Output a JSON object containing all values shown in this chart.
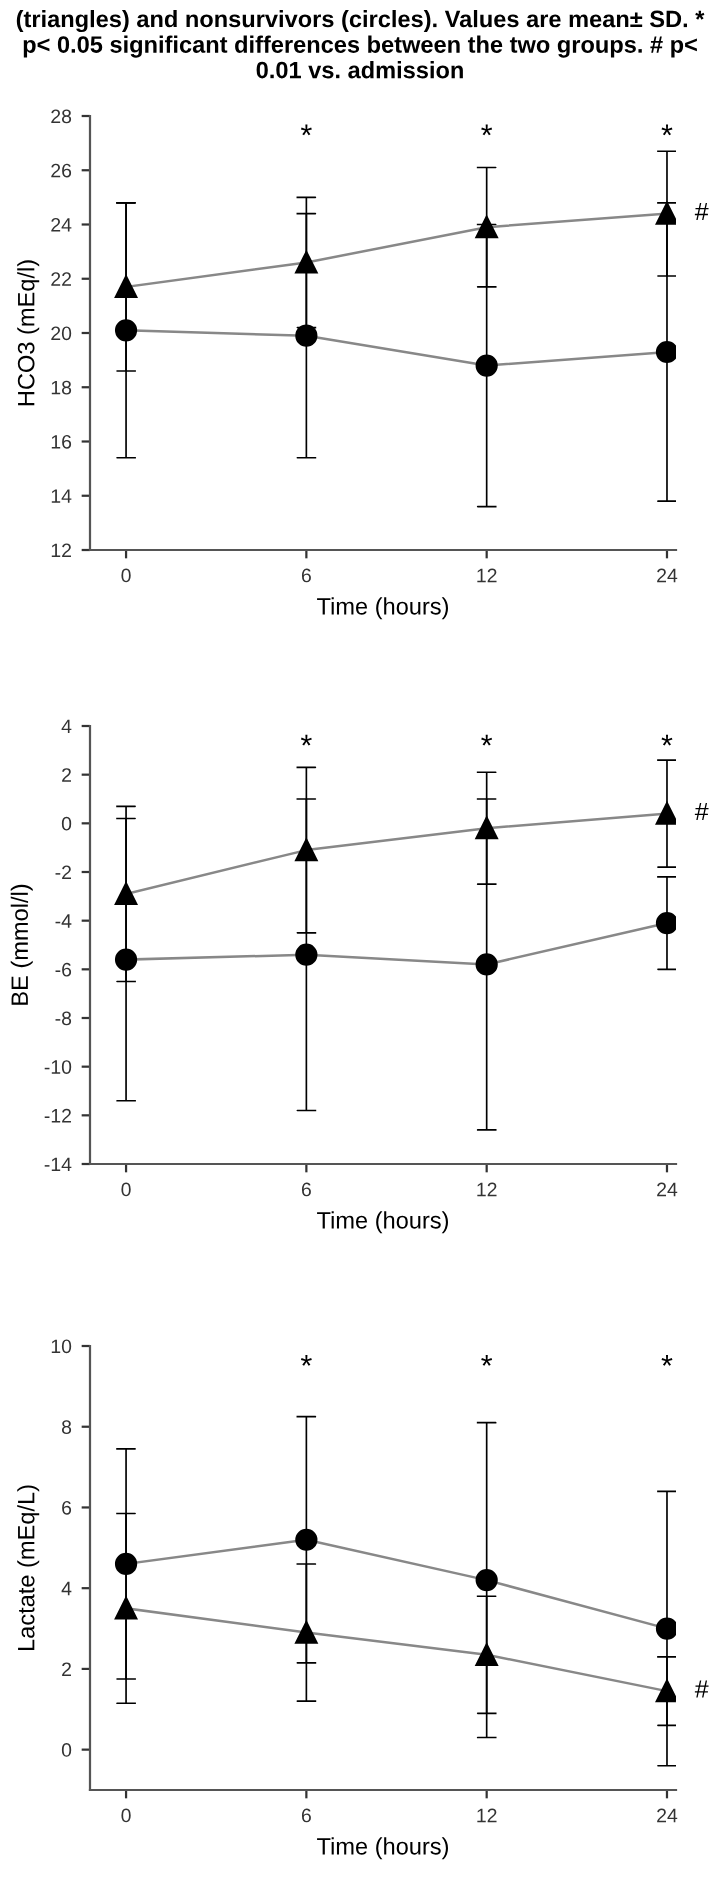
{
  "chart_data": [
    {
      "type": "line",
      "title": "(triangles) and nonsurvivors (circles). Values are mean± SD. * p< 0.05 significant differences between the two groups. # p< 0.01 vs. admission",
      "xlabel": "Time (hours)",
      "ylabel": "HCO3 (mEq/l)",
      "categories": [
        "0",
        "6",
        "12",
        "24"
      ],
      "ylim": [
        12,
        28
      ],
      "yticks": [
        12,
        14,
        16,
        18,
        20,
        22,
        24,
        26,
        28
      ],
      "grid": false,
      "legend": false,
      "series": [
        {
          "color": "#000000",
          "marker": "triangle",
          "values": [
            21.7,
            22.6,
            23.9,
            24.4
          ],
          "errors": [
            3.1,
            2.4,
            2.2,
            2.3
          ]
        },
        {
          "color": "#000000",
          "marker": "circle",
          "values": [
            20.1,
            19.9,
            18.8,
            19.3
          ],
          "errors": [
            4.7,
            4.5,
            5.2,
            5.5
          ]
        }
      ],
      "annotations": [
        "*",
        "*",
        "*",
        "#"
      ]
    },
    {
      "type": "line",
      "xlabel": "Time (hours)",
      "ylabel": "BE (mmol/l)",
      "categories": [
        "0",
        "6",
        "12",
        "24"
      ],
      "ylim": [
        -14,
        4
      ],
      "yticks": [
        -14,
        -12,
        -10,
        -8,
        -6,
        -4,
        -2,
        0,
        2,
        4
      ],
      "grid": false,
      "legend": false,
      "series": [
        {
          "color": "#000000",
          "marker": "triangle",
          "values": [
            -2.9,
            -1.1,
            -0.2,
            0.4
          ],
          "errors": [
            3.6,
            3.4,
            2.3,
            2.2
          ]
        },
        {
          "color": "#000000",
          "marker": "circle",
          "values": [
            -5.6,
            -5.4,
            -5.8,
            -4.1
          ],
          "errors": [
            5.8,
            6.4,
            6.8,
            1.9
          ]
        }
      ],
      "annotations": [
        "*",
        "*",
        "*",
        "#"
      ]
    },
    {
      "type": "line",
      "xlabel": "Time (hours)",
      "ylabel": "Lactate (mEq/L)",
      "categories": [
        "0",
        "6",
        "12",
        "24"
      ],
      "ylim": [
        -1,
        10
      ],
      "yticks": [
        0,
        2,
        4,
        6,
        8,
        10
      ],
      "grid": false,
      "legend": false,
      "series": [
        {
          "color": "#000000",
          "marker": "circle",
          "values": [
            4.6,
            5.2,
            4.2,
            3.0
          ],
          "errors": [
            2.85,
            3.05,
            3.9,
            3.4
          ]
        },
        {
          "color": "#000000",
          "marker": "triangle",
          "values": [
            3.5,
            2.9,
            2.35,
            1.45
          ],
          "errors": [
            2.35,
            1.7,
            1.45,
            0.85
          ]
        }
      ],
      "annotations": [
        "*",
        "*",
        "*",
        "#"
      ]
    }
  ]
}
